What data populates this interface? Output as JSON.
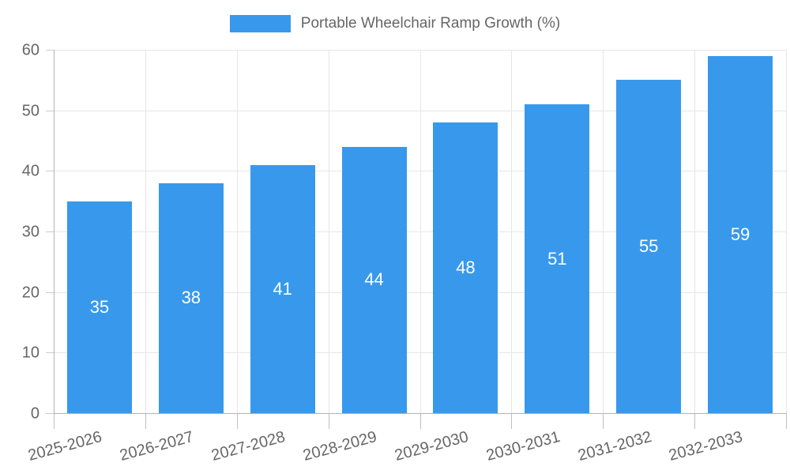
{
  "legend": {
    "label": "Portable Wheelchair Ramp Growth (%)"
  },
  "chart_data": {
    "type": "bar",
    "title": "Portable Wheelchair Ramp Growth (%)",
    "categories": [
      "2025-2026",
      "2026-2027",
      "2027-2028",
      "2028-2029",
      "2029-2030",
      "2030-2031",
      "2031-2032",
      "2032-2033"
    ],
    "values": [
      35,
      38,
      41,
      44,
      48,
      51,
      55,
      59
    ],
    "xlabel": "",
    "ylabel": "",
    "ylim": [
      0,
      60
    ],
    "yticks": [
      0,
      10,
      20,
      30,
      40,
      50,
      60
    ],
    "grid": true,
    "legend_position": "top",
    "bar_color": "#3899ec",
    "value_label_color": "#ffffff",
    "axis_text_color": "#666666",
    "gridline_color": "#e6e6e6",
    "axis_line_color": "#b3b3b3"
  }
}
